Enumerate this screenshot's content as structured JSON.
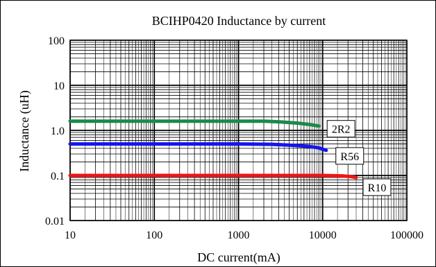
{
  "chart_data": {
    "type": "line",
    "title": "BCIHP0420 Inductance by current",
    "xlabel": "DC current(mA)",
    "ylabel": "Inductance (uH)",
    "x_scale": "log",
    "y_scale": "log",
    "xlim": [
      10,
      100000
    ],
    "ylim": [
      0.01,
      100
    ],
    "x_ticks": [
      "10",
      "100",
      "1000",
      "10000",
      "100000"
    ],
    "y_ticks": [
      "100",
      "10",
      "1.0",
      "0.1",
      "0.01"
    ],
    "grid": true,
    "series": [
      {
        "name": "2R2",
        "color": "#1a8a4a",
        "points": [
          [
            10,
            1.6
          ],
          [
            100,
            1.6
          ],
          [
            1000,
            1.6
          ],
          [
            2000,
            1.6
          ],
          [
            3000,
            1.55
          ],
          [
            5000,
            1.45
          ],
          [
            7000,
            1.35
          ],
          [
            9000,
            1.25
          ]
        ]
      },
      {
        "name": "R56",
        "color": "#1515ee",
        "points": [
          [
            10,
            0.5
          ],
          [
            100,
            0.5
          ],
          [
            1000,
            0.5
          ],
          [
            2500,
            0.49
          ],
          [
            4000,
            0.47
          ],
          [
            7000,
            0.44
          ],
          [
            9000,
            0.41
          ],
          [
            11000,
            0.36
          ]
        ]
      },
      {
        "name": "R10",
        "color": "#ee1515",
        "points": [
          [
            10,
            0.1
          ],
          [
            100,
            0.1
          ],
          [
            1000,
            0.1
          ],
          [
            10000,
            0.1
          ],
          [
            17000,
            0.098
          ],
          [
            22000,
            0.094
          ],
          [
            25000,
            0.09
          ]
        ]
      }
    ]
  }
}
